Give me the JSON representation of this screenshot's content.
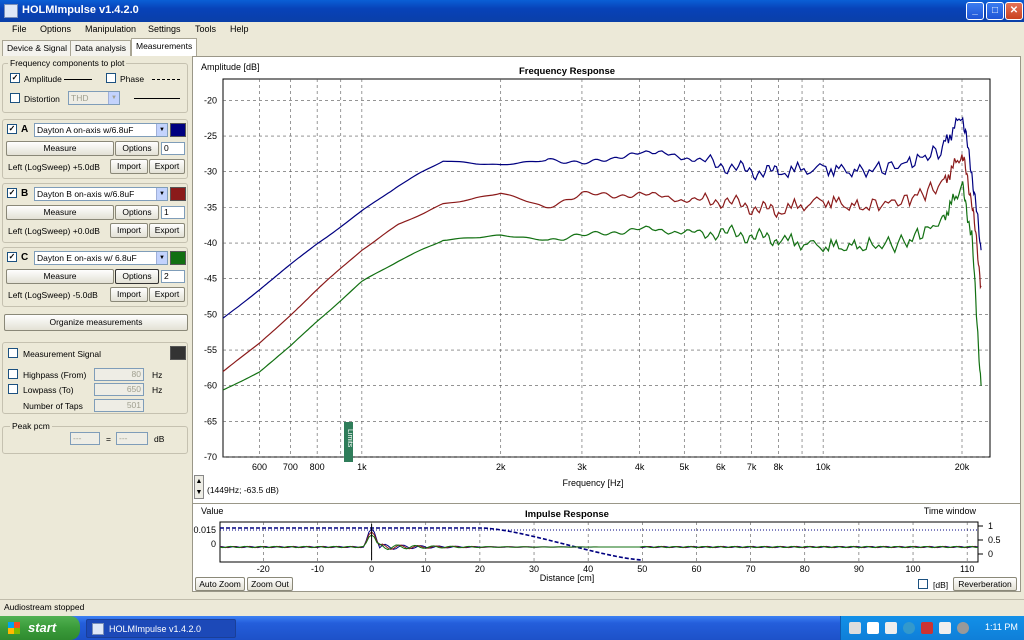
{
  "window": {
    "title": "HOLMImpulse  v1.4.2.0",
    "minimize": "_",
    "maximize": "□",
    "close": "✕"
  },
  "menu": [
    "File",
    "Options",
    "Manipulation",
    "Settings",
    "Tools",
    "Help"
  ],
  "tabs": [
    "Device & Signal",
    "Data analysis",
    "Measurements"
  ],
  "freq_components": {
    "title": "Frequency components to plot",
    "amplitude": "Amplitude",
    "phase": "Phase",
    "distortion": "Distortion",
    "distortion_value": "THD"
  },
  "measurements": [
    {
      "letter": "A",
      "name": "Dayton A on-axis w/6.8uF",
      "measure": "Measure",
      "options": "Options",
      "index": "0",
      "info": "Left (LogSweep) +5.0dB",
      "import": "Import",
      "export": "Export",
      "color": "#000080"
    },
    {
      "letter": "B",
      "name": "Dayton B on-axis w/6.8uF",
      "measure": "Measure",
      "options": "Options",
      "index": "1",
      "info": "Left (LogSweep) +0.0dB",
      "import": "Import",
      "export": "Export",
      "color": "#8b1a1a"
    },
    {
      "letter": "C",
      "name": "Dayton E on-axis w/ 6.8uF",
      "measure": "Measure",
      "options": "Options",
      "index": "2",
      "info": "Left (LogSweep) -5.0dB",
      "import": "Import",
      "export": "Export",
      "color": "#127012"
    }
  ],
  "organize": "Organize measurements",
  "signal": {
    "title": "Measurement Signal",
    "highpass": "Highpass (From)",
    "highpass_value": "80",
    "lowpass": "Lowpass (To)",
    "lowpass_value": "650",
    "taps": "Number of Taps",
    "taps_value": "501",
    "unit": "Hz"
  },
  "peak": {
    "title": "Peak pcm",
    "left": "---",
    "eq": "=",
    "right": "---",
    "unit": "dB"
  },
  "freq_plot": {
    "title": "Frequency Response",
    "ylabel": "Amplitude [dB]",
    "xlabel": "Frequency [Hz]",
    "cursor_readout": "(1449Hz; -63.5 dB)",
    "marker_label": "Limits",
    "y_ticks": [
      "-20",
      "-25",
      "-30",
      "-35",
      "-40",
      "-45",
      "-50",
      "-55",
      "-60",
      "-65",
      "-70"
    ],
    "x_ticks": [
      "600",
      "700",
      "800",
      "1k",
      "2k",
      "3k",
      "4k",
      "5k",
      "6k",
      "7k",
      "8k",
      "10k",
      "20k"
    ]
  },
  "impulse_plot": {
    "title": "Impulse Response",
    "value_label": "Value",
    "time_window": "Time window",
    "xlabel": "Distance [cm]",
    "y_ticks": [
      "0.015",
      "0"
    ],
    "tw_ticks": [
      "1",
      "0.5",
      "0"
    ],
    "x_ticks": [
      "-20",
      "-10",
      "0",
      "10",
      "20",
      "30",
      "40",
      "50",
      "60",
      "70",
      "80",
      "90",
      "100",
      "110"
    ],
    "auto_zoom": "Auto Zoom",
    "zoom_out": "Zoom Out",
    "db": "[dB]",
    "reverberation": "Reverberation"
  },
  "status": "Audiostream stopped",
  "taskbar": {
    "start": "start",
    "app": "HOLMImpulse  v1.4.2.0",
    "clock": "1:11 PM"
  },
  "chart_data": {
    "type": "line",
    "title": "Frequency Response",
    "xlabel": "Frequency [Hz]",
    "ylabel": "Amplitude [dB]",
    "xscale": "log",
    "xlim": [
      500,
      23000
    ],
    "ylim": [
      -70,
      -17
    ],
    "grid": true,
    "x": [
      500,
      600,
      700,
      800,
      1000,
      1200,
      1500,
      2000,
      2500,
      3000,
      3500,
      4000,
      5000,
      6000,
      7000,
      8000,
      10000,
      12000,
      15000,
      18000,
      20000,
      21000,
      22000
    ],
    "series": [
      {
        "color": "#000080",
        "values": [
          -50.5,
          -46.5,
          -43,
          -40,
          -35.5,
          -32,
          -28.5,
          -29,
          -28.5,
          -28.5,
          -28.5,
          -27,
          -28,
          -29,
          -30,
          -30,
          -29.5,
          -30,
          -29,
          -27,
          -22,
          -30,
          -41
        ]
      },
      {
        "color": "#8b1a1a",
        "values": [
          -58,
          -54,
          -50,
          -46.5,
          -41,
          -37.5,
          -34.5,
          -33,
          -35,
          -33,
          -33.5,
          -33,
          -34,
          -34,
          -35,
          -35.5,
          -34,
          -35,
          -34,
          -32,
          -27.5,
          -34,
          -46
        ]
      },
      {
        "color": "#127012",
        "values": [
          -60.5,
          -58,
          -54.5,
          -51,
          -45.5,
          -42.5,
          -39.5,
          -39,
          -39.5,
          -39,
          -38.5,
          -38,
          -38.5,
          -38.5,
          -39,
          -39.5,
          -40.5,
          -40.5,
          -40,
          -37,
          -32,
          -39,
          -60
        ]
      }
    ]
  }
}
